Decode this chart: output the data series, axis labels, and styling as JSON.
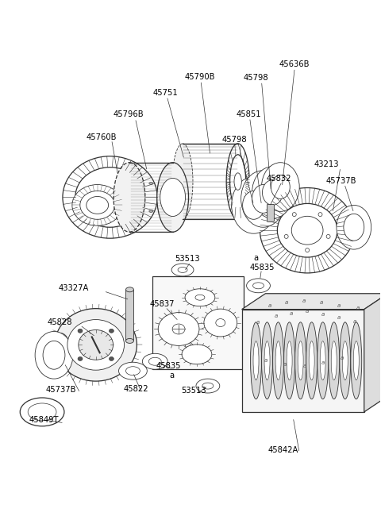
{
  "bg_color": "#ffffff",
  "line_color": "#333333",
  "fig_width": 4.8,
  "fig_height": 6.55,
  "dpi": 100,
  "parts_labels": [
    [
      "45790B",
      230,
      100,
      "left"
    ],
    [
      "45751",
      195,
      120,
      "left"
    ],
    [
      "45796B",
      145,
      148,
      "left"
    ],
    [
      "45760B",
      110,
      178,
      "left"
    ],
    [
      "45636B",
      355,
      85,
      "left"
    ],
    [
      "45798",
      310,
      100,
      "left"
    ],
    [
      "45851",
      300,
      148,
      "left"
    ],
    [
      "45798",
      285,
      178,
      "left"
    ],
    [
      "43213",
      400,
      208,
      "left"
    ],
    [
      "45832",
      340,
      225,
      "left"
    ],
    [
      "45737B",
      415,
      228,
      "left"
    ],
    [
      "53513",
      225,
      328,
      "left"
    ],
    [
      "a",
      320,
      328,
      "left"
    ],
    [
      "45835",
      316,
      338,
      "left"
    ],
    [
      "45837",
      192,
      385,
      "left"
    ],
    [
      "43327A",
      75,
      368,
      "left"
    ],
    [
      "45828",
      62,
      408,
      "left"
    ],
    [
      "45835",
      198,
      468,
      "left"
    ],
    [
      "a",
      215,
      478,
      "left"
    ],
    [
      "53513",
      230,
      498,
      "left"
    ],
    [
      "45822",
      158,
      492,
      "left"
    ],
    [
      "45737B",
      60,
      492,
      "left"
    ],
    [
      "45849T",
      40,
      530,
      "left"
    ],
    [
      "45842A",
      340,
      570,
      "left"
    ]
  ]
}
